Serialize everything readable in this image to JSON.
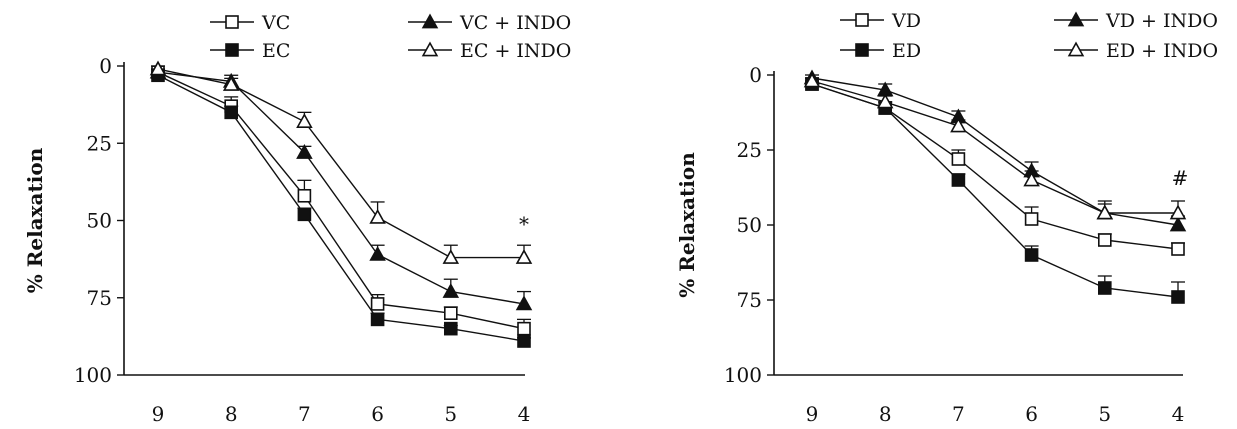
{
  "chart_data": [
    {
      "type": "line",
      "ylabel": "% Relaxation",
      "xlabel": "",
      "categories": [
        "9",
        "8",
        "7",
        "6",
        "5",
        "4"
      ],
      "y_ticks": [
        "0",
        "25",
        "50",
        "75",
        "100"
      ],
      "ylim": [
        0,
        100
      ],
      "y_inverted": true,
      "legend_position": "top",
      "annotation": "*",
      "series": [
        {
          "name": "VC",
          "marker": "open-square",
          "values": [
            2,
            13,
            42,
            77,
            80,
            85
          ],
          "errors": [
            1,
            3,
            5,
            3,
            2,
            3
          ]
        },
        {
          "name": "VC + INDO",
          "marker": "filled-triangle",
          "values": [
            2,
            5,
            28,
            61,
            73,
            77
          ],
          "errors": [
            1,
            2,
            2,
            3,
            4,
            4
          ]
        },
        {
          "name": "EC",
          "marker": "filled-square",
          "values": [
            3,
            15,
            48,
            82,
            85,
            89
          ],
          "errors": [
            1,
            2,
            2,
            2,
            1,
            1
          ]
        },
        {
          "name": "EC + INDO",
          "marker": "open-triangle",
          "values": [
            1,
            6,
            18,
            49,
            62,
            62
          ],
          "errors": [
            1,
            2,
            3,
            5,
            4,
            4
          ]
        }
      ]
    },
    {
      "type": "line",
      "ylabel": "% Relaxation",
      "xlabel": "",
      "categories": [
        "9",
        "8",
        "7",
        "6",
        "5",
        "4"
      ],
      "y_ticks": [
        "0",
        "25",
        "50",
        "75",
        "100"
      ],
      "ylim": [
        0,
        100
      ],
      "y_inverted": true,
      "legend_position": "top",
      "annotation": "#",
      "series": [
        {
          "name": "VD",
          "marker": "open-square",
          "values": [
            3,
            11,
            28,
            48,
            55,
            58
          ],
          "errors": [
            1,
            2,
            3,
            4,
            2,
            2
          ]
        },
        {
          "name": "VD + INDO",
          "marker": "filled-triangle",
          "values": [
            1,
            5,
            14,
            32,
            46,
            50
          ],
          "errors": [
            1,
            2,
            2,
            3,
            3,
            3
          ]
        },
        {
          "name": "ED",
          "marker": "filled-square",
          "values": [
            3,
            11,
            35,
            60,
            71,
            74
          ],
          "errors": [
            1,
            2,
            2,
            3,
            4,
            5
          ]
        },
        {
          "name": "ED + INDO",
          "marker": "open-triangle",
          "values": [
            2,
            9,
            17,
            35,
            46,
            46
          ],
          "errors": [
            1,
            2,
            2,
            3,
            4,
            4
          ]
        }
      ]
    }
  ]
}
